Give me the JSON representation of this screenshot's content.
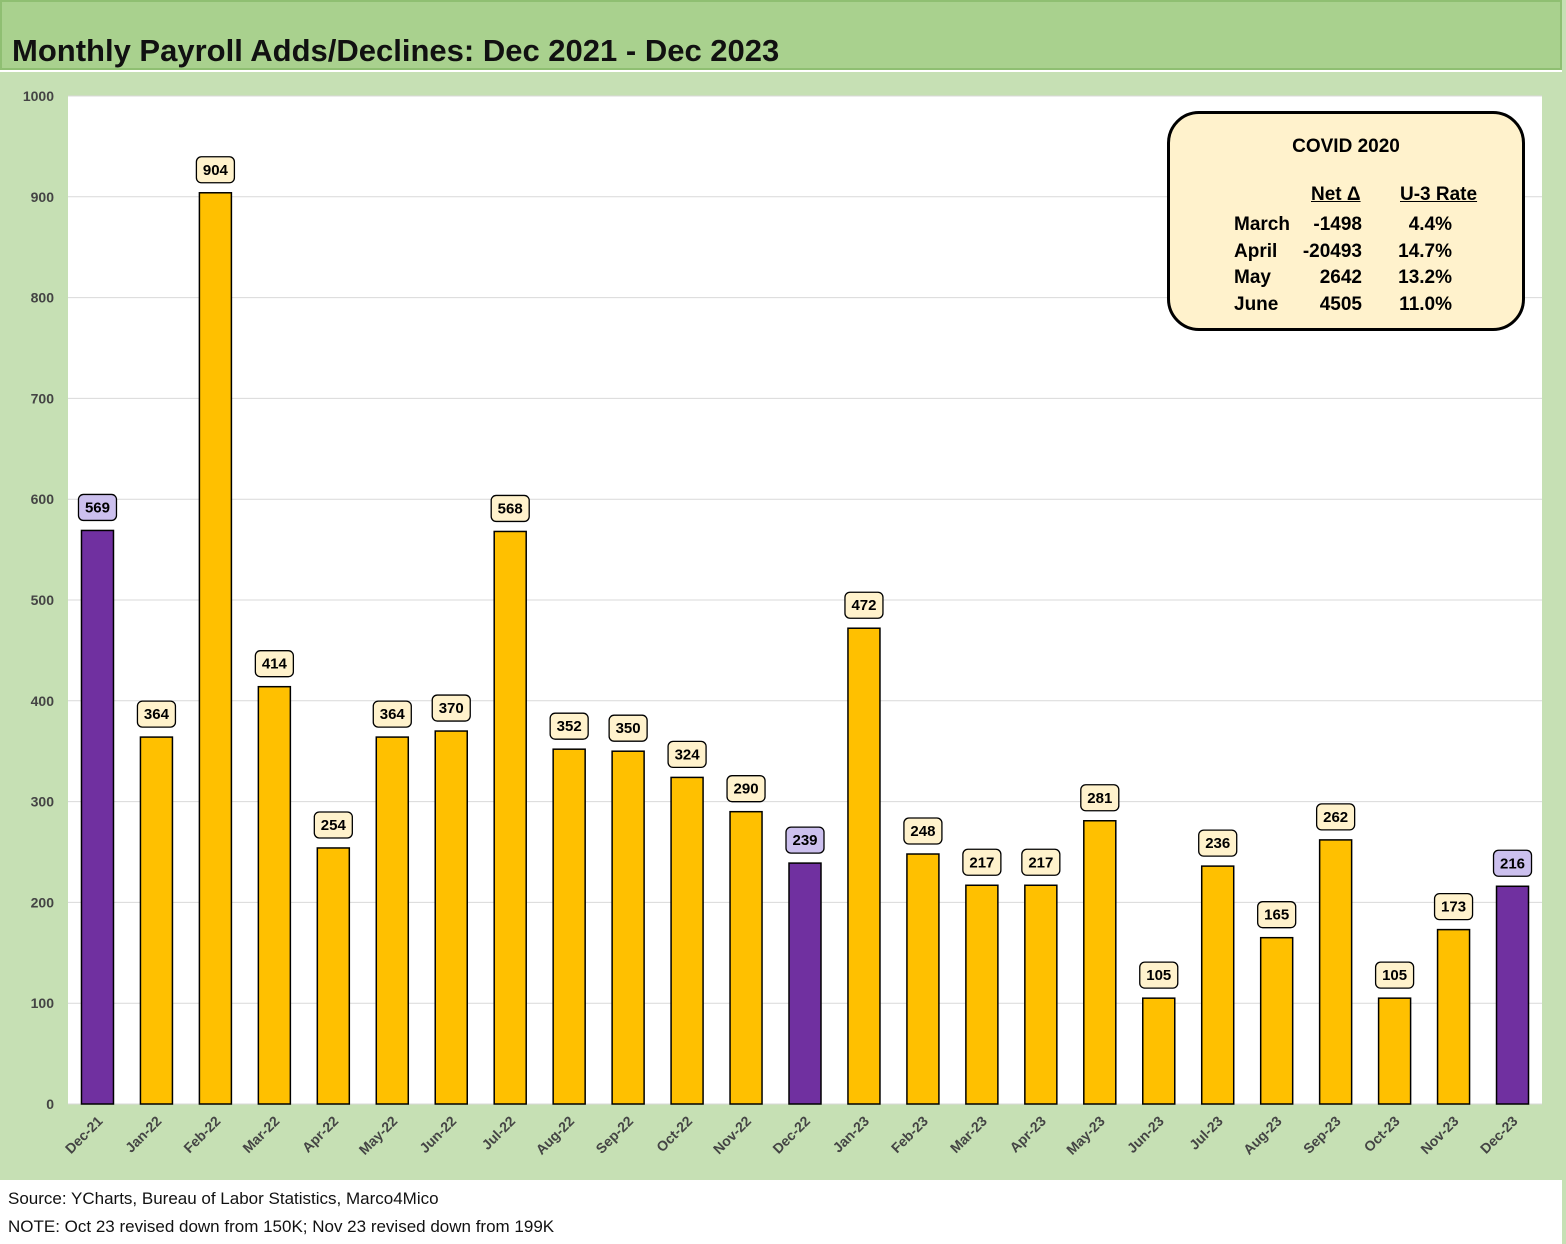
{
  "title": "Monthly Payroll Adds/Declines: Dec 2021 - Dec 2023",
  "colors": {
    "bar_default": "#ffc000",
    "bar_highlight": "#7030a0",
    "label_default_bg": "#fff2cc",
    "label_highlight_bg": "#ccc0ee",
    "frame": "#c6e0b4",
    "title_bar": "#a9d18e"
  },
  "chart_data": {
    "type": "bar",
    "title": "Monthly Payroll Adds/Declines: Dec 2021 - Dec 2023",
    "xlabel": "",
    "ylabel": "",
    "ylim": [
      0,
      1000
    ],
    "yticks": [
      "0",
      "100",
      "200",
      "300",
      "400",
      "500",
      "600",
      "700",
      "800",
      "900",
      "1000"
    ],
    "grid": true,
    "categories": [
      "Dec-21",
      "Jan-22",
      "Feb-22",
      "Mar-22",
      "Apr-22",
      "May-22",
      "Jun-22",
      "Jul-22",
      "Aug-22",
      "Sep-22",
      "Oct-22",
      "Nov-22",
      "Dec-22",
      "Jan-23",
      "Feb-23",
      "Mar-23",
      "Apr-23",
      "May-23",
      "Jun-23",
      "Jul-23",
      "Aug-23",
      "Sep-23",
      "Oct-23",
      "Nov-23",
      "Dec-23"
    ],
    "values": [
      569,
      364,
      904,
      414,
      254,
      364,
      370,
      568,
      352,
      350,
      324,
      290,
      239,
      472,
      248,
      217,
      217,
      281,
      105,
      236,
      165,
      262,
      105,
      173,
      216
    ],
    "highlighted": [
      "Dec-21",
      "Dec-22",
      "Dec-23"
    ]
  },
  "covid_box": {
    "title": "COVID 2020",
    "headers": [
      "Net Δ",
      "U-3 Rate"
    ],
    "rows": [
      {
        "month": "March",
        "net": "-1498",
        "rate": "4.4%"
      },
      {
        "month": "April",
        "net": "-20493",
        "rate": "14.7%"
      },
      {
        "month": "May",
        "net": "2642",
        "rate": "13.2%"
      },
      {
        "month": "June",
        "net": "4505",
        "rate": "11.0%"
      }
    ]
  },
  "footer": {
    "source": "Source: YCharts, Bureau of Labor Statistics, Marco4Mico",
    "note": "NOTE: Oct 23 revised down from 150K; Nov 23 revised down from 199K"
  }
}
